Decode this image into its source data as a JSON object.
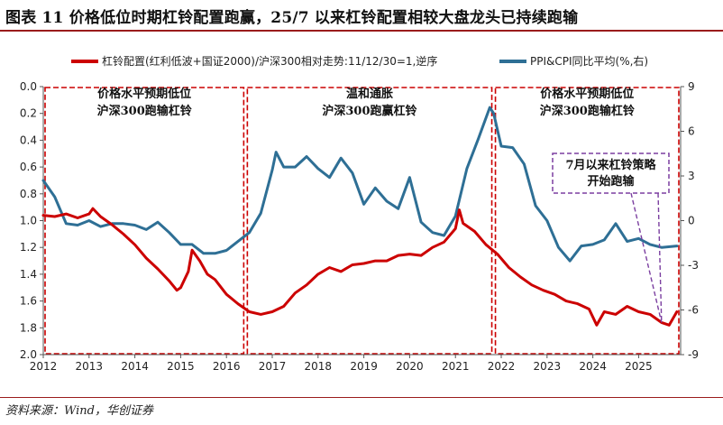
{
  "header": {
    "title": "图表 11    价格低位时期杠铃配置跑赢，25/7 以来杠铃配置相较大盘龙头已持续跑输"
  },
  "footer": {
    "source": "资料来源：Wind，华创证券"
  },
  "colors": {
    "left_series": "#cc0000",
    "right_series": "#2e6f95",
    "box": "#cc0000",
    "callout": "#7b3fa0",
    "accent": "#9b1c1c"
  },
  "chart_data": {
    "type": "line",
    "title": "",
    "x_axis": {
      "range": [
        "2012-01",
        "2025-12"
      ],
      "ticks": [
        "2012",
        "2013",
        "2014",
        "2015",
        "2016",
        "2017",
        "2018",
        "2019",
        "2020",
        "2021",
        "2022",
        "2023",
        "2024",
        "2025"
      ]
    },
    "y_left": {
      "range": [
        0.0,
        2.0
      ],
      "inverted": true,
      "ticks": [
        "0.0",
        "0.2",
        "0.4",
        "0.6",
        "0.8",
        "1.0",
        "1.2",
        "1.4",
        "1.6",
        "1.8",
        "2.0"
      ]
    },
    "y_right": {
      "range": [
        -9,
        9
      ],
      "ticks": [
        "9",
        "6",
        "3",
        "0",
        "-3",
        "-6",
        "-9"
      ]
    },
    "grid": false,
    "legend_position": "top",
    "series": [
      {
        "name": "杠铃配置(红利低波+国证2000)/沪深300相对走势:11/12/30=1,逆序",
        "axis": "left",
        "points": [
          [
            "2012-01",
            0.96
          ],
          [
            "2012-04",
            0.97
          ],
          [
            "2012-07",
            0.95
          ],
          [
            "2012-10",
            0.98
          ],
          [
            "2013-01",
            0.95
          ],
          [
            "2013-02",
            0.91
          ],
          [
            "2013-04",
            0.97
          ],
          [
            "2013-07",
            1.03
          ],
          [
            "2013-10",
            1.1
          ],
          [
            "2014-01",
            1.18
          ],
          [
            "2014-04",
            1.28
          ],
          [
            "2014-07",
            1.36
          ],
          [
            "2014-10",
            1.45
          ],
          [
            "2014-12",
            1.52
          ],
          [
            "2015-01",
            1.5
          ],
          [
            "2015-03",
            1.38
          ],
          [
            "2015-04",
            1.22
          ],
          [
            "2015-06",
            1.3
          ],
          [
            "2015-08",
            1.4
          ],
          [
            "2015-10",
            1.44
          ],
          [
            "2016-01",
            1.55
          ],
          [
            "2016-04",
            1.62
          ],
          [
            "2016-07",
            1.68
          ],
          [
            "2016-10",
            1.7
          ],
          [
            "2017-01",
            1.68
          ],
          [
            "2017-04",
            1.64
          ],
          [
            "2017-07",
            1.54
          ],
          [
            "2017-10",
            1.48
          ],
          [
            "2018-01",
            1.4
          ],
          [
            "2018-04",
            1.35
          ],
          [
            "2018-07",
            1.38
          ],
          [
            "2018-10",
            1.33
          ],
          [
            "2019-01",
            1.32
          ],
          [
            "2019-04",
            1.3
          ],
          [
            "2019-07",
            1.3
          ],
          [
            "2019-10",
            1.26
          ],
          [
            "2020-01",
            1.25
          ],
          [
            "2020-04",
            1.26
          ],
          [
            "2020-07",
            1.2
          ],
          [
            "2020-10",
            1.16
          ],
          [
            "2021-01",
            1.06
          ],
          [
            "2021-02",
            0.92
          ],
          [
            "2021-03",
            1.02
          ],
          [
            "2021-06",
            1.08
          ],
          [
            "2021-09",
            1.18
          ],
          [
            "2021-12",
            1.25
          ],
          [
            "2022-03",
            1.35
          ],
          [
            "2022-06",
            1.42
          ],
          [
            "2022-09",
            1.48
          ],
          [
            "2022-12",
            1.52
          ],
          [
            "2023-03",
            1.55
          ],
          [
            "2023-06",
            1.6
          ],
          [
            "2023-09",
            1.62
          ],
          [
            "2023-12",
            1.66
          ],
          [
            "2024-02",
            1.78
          ],
          [
            "2024-04",
            1.68
          ],
          [
            "2024-07",
            1.7
          ],
          [
            "2024-10",
            1.64
          ],
          [
            "2025-01",
            1.68
          ],
          [
            "2025-04",
            1.7
          ],
          [
            "2025-07",
            1.76
          ],
          [
            "2025-09",
            1.78
          ],
          [
            "2025-11",
            1.68
          ]
        ]
      },
      {
        "name": "PPI&CPI同比平均(%,右)",
        "axis": "right",
        "points": [
          [
            "2012-01",
            2.7
          ],
          [
            "2012-04",
            1.6
          ],
          [
            "2012-07",
            -0.2
          ],
          [
            "2012-10",
            -0.3
          ],
          [
            "2013-01",
            0.0
          ],
          [
            "2013-04",
            -0.4
          ],
          [
            "2013-07",
            -0.2
          ],
          [
            "2013-10",
            -0.2
          ],
          [
            "2014-01",
            -0.3
          ],
          [
            "2014-04",
            -0.6
          ],
          [
            "2014-07",
            -0.1
          ],
          [
            "2014-10",
            -0.8
          ],
          [
            "2015-01",
            -1.6
          ],
          [
            "2015-04",
            -1.6
          ],
          [
            "2015-07",
            -2.2
          ],
          [
            "2015-10",
            -2.2
          ],
          [
            "2016-01",
            -2.0
          ],
          [
            "2016-04",
            -1.4
          ],
          [
            "2016-07",
            -0.8
          ],
          [
            "2016-10",
            0.5
          ],
          [
            "2017-01",
            3.4
          ],
          [
            "2017-02",
            4.6
          ],
          [
            "2017-04",
            3.6
          ],
          [
            "2017-07",
            3.6
          ],
          [
            "2017-10",
            4.3
          ],
          [
            "2018-01",
            3.5
          ],
          [
            "2018-04",
            2.9
          ],
          [
            "2018-07",
            4.2
          ],
          [
            "2018-10",
            3.2
          ],
          [
            "2019-01",
            1.1
          ],
          [
            "2019-04",
            2.2
          ],
          [
            "2019-07",
            1.3
          ],
          [
            "2019-10",
            0.8
          ],
          [
            "2020-01",
            2.9
          ],
          [
            "2020-04",
            -0.1
          ],
          [
            "2020-07",
            -0.8
          ],
          [
            "2020-10",
            -1.0
          ],
          [
            "2021-01",
            0.3
          ],
          [
            "2021-04",
            3.5
          ],
          [
            "2021-07",
            5.5
          ],
          [
            "2021-10",
            7.6
          ],
          [
            "2021-11",
            7.2
          ],
          [
            "2022-01",
            5.0
          ],
          [
            "2022-04",
            4.9
          ],
          [
            "2022-07",
            3.8
          ],
          [
            "2022-10",
            1.0
          ],
          [
            "2023-01",
            0.0
          ],
          [
            "2023-04",
            -1.8
          ],
          [
            "2023-07",
            -2.7
          ],
          [
            "2023-10",
            -1.7
          ],
          [
            "2024-01",
            -1.6
          ],
          [
            "2024-04",
            -1.3
          ],
          [
            "2024-07",
            -0.2
          ],
          [
            "2024-10",
            -1.4
          ],
          [
            "2025-01",
            -1.2
          ],
          [
            "2025-04",
            -1.6
          ],
          [
            "2025-07",
            -1.8
          ],
          [
            "2025-11",
            -1.7
          ]
        ]
      }
    ],
    "annotations": [
      {
        "lines": [
          "价格水平预期低位",
          "沪深300跑输杠铃"
        ],
        "box": {
          "x": [
            "2012-01",
            "2016-06"
          ],
          "y_left": [
            0.0,
            2.0
          ]
        }
      },
      {
        "lines": [
          "温和通胀",
          "沪深300跑赢杠铃"
        ],
        "box": {
          "x": [
            "2016-06",
            "2021-11"
          ],
          "y_left": [
            0.0,
            2.0
          ]
        }
      },
      {
        "lines": [
          "价格水平预期低位",
          "沪深300跑输杠铃"
        ],
        "box": {
          "x": [
            "2021-11",
            "2025-12"
          ],
          "y_left": [
            0.0,
            2.0
          ]
        }
      }
    ],
    "callout": {
      "lines": [
        "7月以来杠铃策略",
        "开始跑输"
      ],
      "points_to": "2025-07"
    }
  }
}
